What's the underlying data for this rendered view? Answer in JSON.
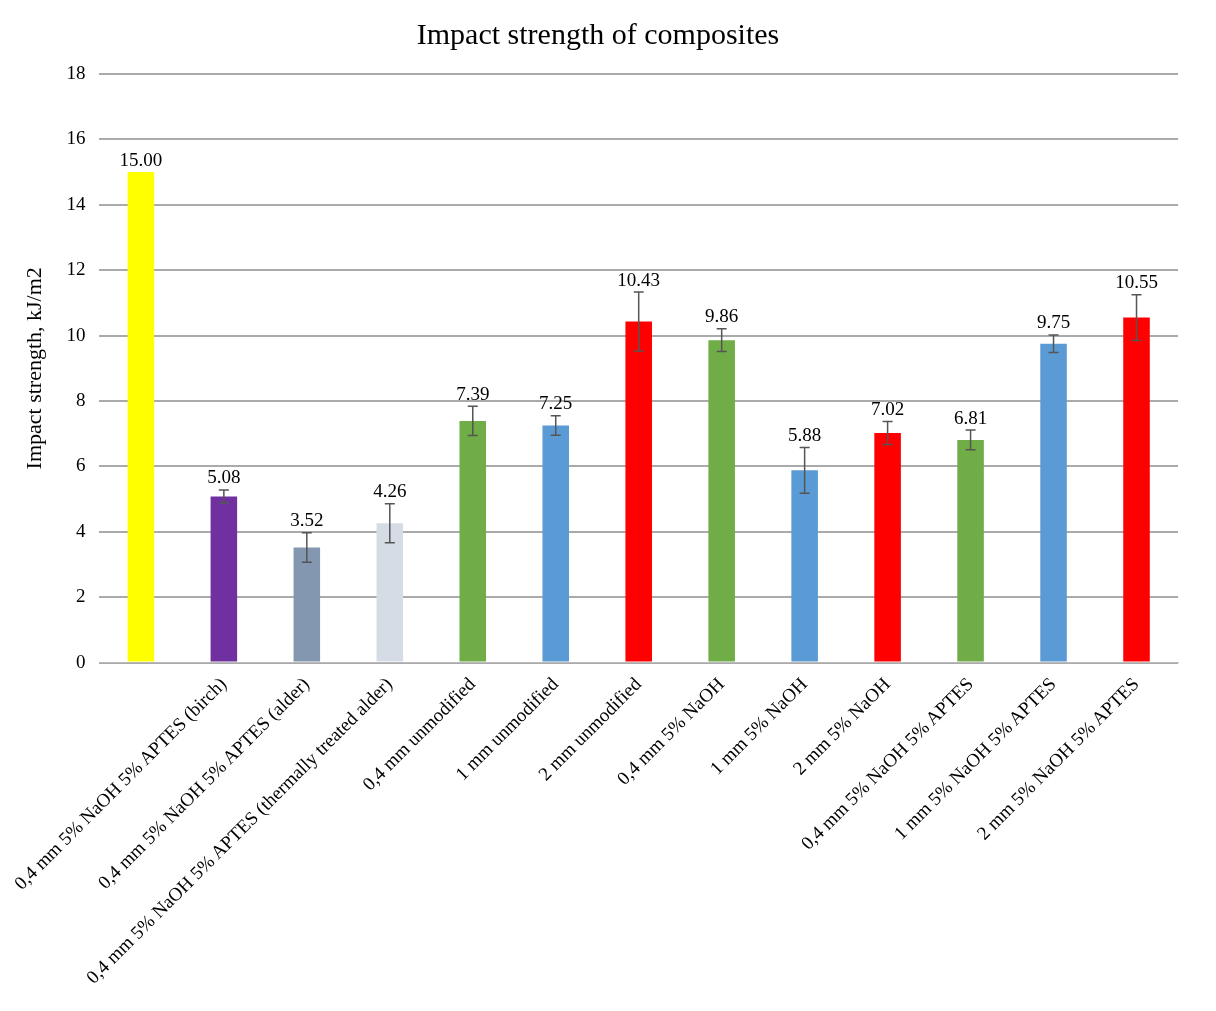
{
  "chart_data": {
    "type": "bar",
    "title": "Impact strength of composites",
    "ylabel": "Impact strength, kJ/m2",
    "categories": [
      null,
      "0,4 mm 5% NaOH 5% APTES (birch)",
      "0,4 mm 5% NaOH 5% APTES (alder)",
      "0,4 mm 5% NaOH 5% APTES (thermally treated alder)",
      "0,4 mm unmodified",
      "1 mm unmodified",
      "2 mm unmodified",
      "0,4 mm 5% NaOH",
      "1 mm 5% NaOH",
      "2 mm 5% NaOH",
      "0,4 mm 5% NaOH 5% APTES",
      "1 mm 5% NaOH 5% APTES",
      "2 mm 5% NaOH 5% APTES"
    ],
    "values": [
      15.0,
      5.08,
      3.52,
      4.26,
      7.39,
      7.25,
      10.43,
      9.86,
      5.88,
      7.02,
      6.81,
      9.75,
      10.55
    ],
    "value_labels": [
      "15.00",
      "5.08",
      "3.52",
      "4.26",
      "7.39",
      "7.25",
      "10.43",
      "9.86",
      "5.88",
      "7.02",
      "6.81",
      "9.75",
      "10.55"
    ],
    "errors": [
      null,
      0.2,
      0.45,
      0.6,
      0.45,
      0.3,
      0.9,
      0.35,
      0.7,
      0.35,
      0.3,
      0.27,
      0.7
    ],
    "colors": [
      "#ffff00",
      "#7030a0",
      "#8497b0",
      "#d6dce5",
      "#70ad47",
      "#5b9bd5",
      "#ff0000",
      "#70ad47",
      "#5b9bd5",
      "#ff0000",
      "#70ad47",
      "#5b9bd5",
      "#ff0000"
    ],
    "ylim": [
      0,
      18
    ],
    "yticks": [
      0,
      2,
      4,
      6,
      8,
      10,
      12,
      14,
      16,
      18
    ],
    "grid": "y",
    "legend": false
  }
}
